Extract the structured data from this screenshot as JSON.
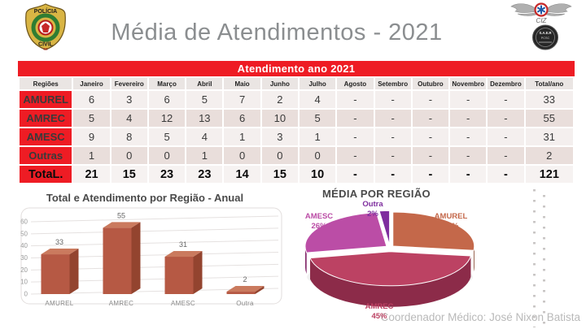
{
  "header": {
    "title": "Média de Atendimentos - 2021",
    "police_badge": {
      "top": "POLÍCIA",
      "bottom": "CIVIL",
      "state": "SC"
    },
    "wings_label": "CIZ",
    "round_badge": {
      "line1": "S.A.E.R",
      "line2": "PCSC"
    }
  },
  "table": {
    "banner": "Atendimento ano 2021",
    "region_header": "Regiões",
    "columns": [
      "Janeiro",
      "Fevereiro",
      "Março",
      "Abril",
      "Maio",
      "Junho",
      "Julho",
      "Agosto",
      "Setembro",
      "Outubro",
      "Novembro",
      "Dezembro",
      "Total/ano"
    ],
    "rows": [
      {
        "label": "AMUREL",
        "values": [
          "6",
          "3",
          "6",
          "5",
          "7",
          "2",
          "4",
          "-",
          "-",
          "-",
          "-",
          "-",
          "33"
        ],
        "total_row": false
      },
      {
        "label": "AMREC",
        "values": [
          "5",
          "4",
          "12",
          "13",
          "6",
          "10",
          "5",
          "-",
          "-",
          "-",
          "-",
          "-",
          "55"
        ],
        "total_row": false
      },
      {
        "label": "AMESC",
        "values": [
          "9",
          "8",
          "5",
          "4",
          "1",
          "3",
          "1",
          "-",
          "-",
          "-",
          "-",
          "-",
          "31"
        ],
        "total_row": false
      },
      {
        "label": "Outras",
        "values": [
          "1",
          "0",
          "0",
          "1",
          "0",
          "0",
          "0",
          "-",
          "-",
          "-",
          "-",
          "-",
          "2"
        ],
        "total_row": false
      },
      {
        "label": "TotaL.",
        "values": [
          "21",
          "15",
          "23",
          "23",
          "14",
          "15",
          "10",
          "-",
          "-",
          "-",
          "-",
          "-",
          "121"
        ],
        "total_row": true
      }
    ]
  },
  "chart_data": [
    {
      "type": "bar",
      "style": "3d",
      "title": "Total e Atendimento por Região - Anual",
      "categories": [
        "AMUREL",
        "AMREC",
        "AMESC",
        "Outra"
      ],
      "values": [
        33,
        55,
        31,
        2
      ],
      "xlabel": "",
      "ylabel": "",
      "ylim": [
        0,
        60
      ],
      "yticks": [
        0,
        10,
        20,
        30,
        40,
        50,
        60
      ],
      "grid": true,
      "bar_color": "#b65944",
      "bar_top_color": "#ca7a5e",
      "bar_side_color": "#93442f"
    },
    {
      "type": "pie",
      "style": "3d",
      "title": "MÉDIA POR REGIÃO",
      "labels": [
        "AMUREL",
        "AMREC",
        "AMESC",
        "Outra"
      ],
      "values_pct": [
        27,
        45,
        26,
        2
      ],
      "colors": [
        "#c4684a",
        "#bc4263",
        "#bb4da6",
        "#7e2d9e"
      ],
      "side_colors": [
        "#7c3a20",
        "#8c2b49",
        "#87306f",
        "#571d70"
      ],
      "explode": [
        5,
        8,
        5,
        6
      ],
      "start_angle_deg": 0,
      "clockwise": true,
      "legend_position": "labels-around-pie"
    }
  ],
  "footer": {
    "coordinator": "Coordenador Médico: José Nixon Batista"
  },
  "colors": {
    "accent_red": "#ee1c24"
  }
}
